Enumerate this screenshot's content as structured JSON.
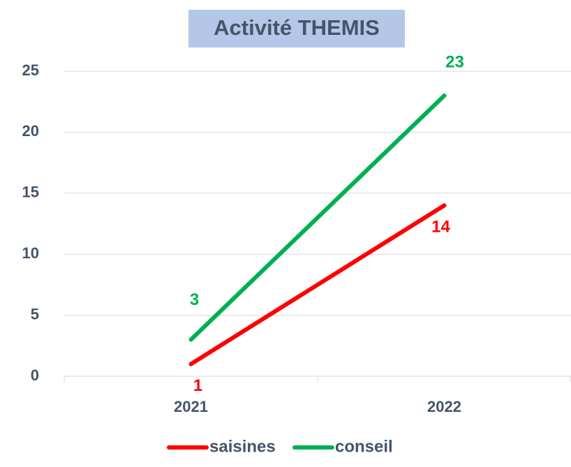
{
  "chart_data": {
    "type": "line",
    "title": "Activité THEMIS",
    "categories": [
      "2021",
      "2022"
    ],
    "series": [
      {
        "name": "saisines",
        "color": "#ff0000",
        "values": [
          1,
          14
        ]
      },
      {
        "name": "conseil",
        "color": "#00b050",
        "values": [
          3,
          23
        ]
      }
    ],
    "ylim": [
      0,
      25
    ],
    "yticks": [
      0,
      5,
      10,
      15,
      20,
      25
    ],
    "grid": true,
    "legend": "bottom"
  }
}
